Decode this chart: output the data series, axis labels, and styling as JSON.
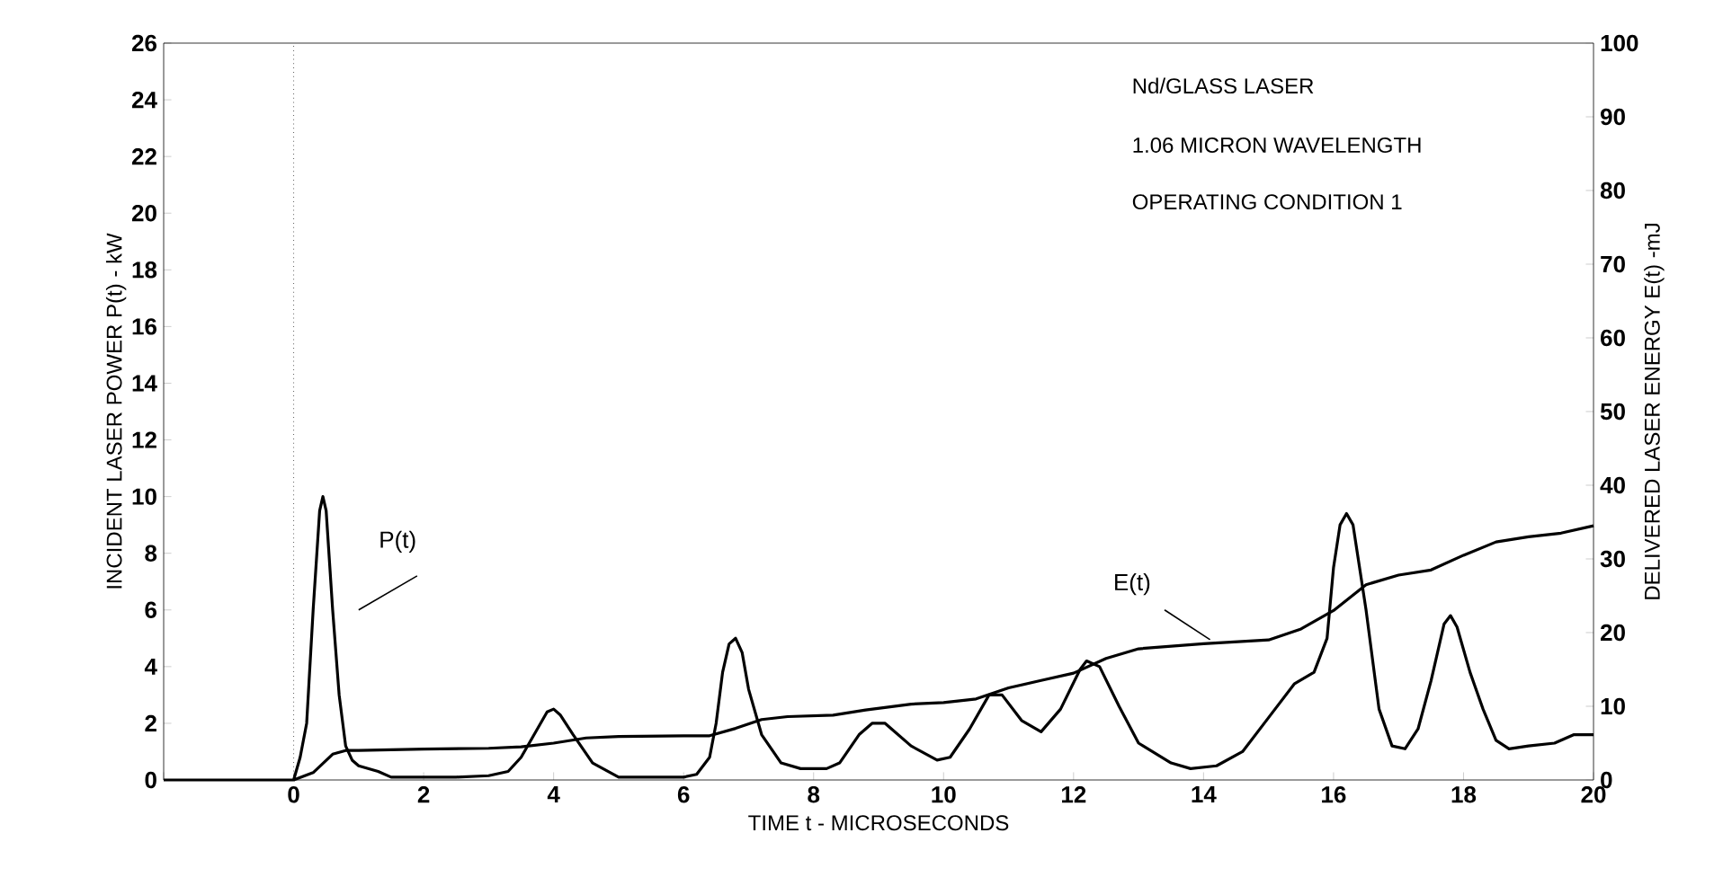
{
  "chart_data": {
    "type": "line",
    "xlabel": "TIME t - MICROSECONDS",
    "ylabel": "INCIDENT LASER POWER P(t) - kW",
    "y2label": "DELIVERED LASER ENERGY E(t) -mJ",
    "annotations": [
      "Nd/GLASS LASER",
      "1.06 MICRON WAVELENGTH",
      "OPERATING CONDITION 1"
    ],
    "xlim": [
      -2,
      20
    ],
    "xticks": [
      {
        "value": -2,
        "label": null
      },
      0,
      2,
      4,
      6,
      8,
      10,
      12,
      14,
      16,
      18,
      20
    ],
    "ylim": [
      0,
      26
    ],
    "yticks": [
      0,
      2,
      4,
      6,
      8,
      10,
      12,
      14,
      16,
      18,
      20,
      22,
      24,
      26
    ],
    "y2lim": [
      0,
      100
    ],
    "y2ticks": [
      0,
      10,
      20,
      30,
      40,
      50,
      60,
      70,
      80,
      90,
      100
    ],
    "grid": false,
    "marker": "none",
    "line_style": "solid",
    "ref_lines": [
      {
        "axis": "x",
        "value": 0,
        "line_style": "dotted",
        "color": "#000000"
      }
    ],
    "series": [
      {
        "name": "P(t)",
        "color": "#000000",
        "x": [
          -2,
          0,
          0.1,
          0.2,
          0.3,
          0.4,
          0.45,
          0.5,
          0.6,
          0.7,
          0.8,
          0.9,
          1.0,
          1.3,
          1.5,
          2,
          2.5,
          3,
          3.3,
          3.5,
          3.7,
          3.9,
          4.0,
          4.1,
          4.3,
          4.6,
          5,
          5.5,
          6,
          6.2,
          6.4,
          6.5,
          6.6,
          6.7,
          6.8,
          6.9,
          7.0,
          7.2,
          7.5,
          7.8,
          8.2,
          8.4,
          8.7,
          8.9,
          9.1,
          9.5,
          9.9,
          10.1,
          10.4,
          10.7,
          10.9,
          11.2,
          11.5,
          11.8,
          12.1,
          12.2,
          12.4,
          12.7,
          13.0,
          13.5,
          13.8,
          14.2,
          14.6,
          15.0,
          15.4,
          15.7,
          15.9,
          16.0,
          16.1,
          16.2,
          16.3,
          16.5,
          16.7,
          16.9,
          17.1,
          17.3,
          17.5,
          17.7,
          17.8,
          17.9,
          18.1,
          18.3,
          18.5,
          18.7,
          19.0,
          19.4,
          19.7,
          20
        ],
        "values": [
          0,
          0,
          0.8,
          2,
          6,
          9.5,
          10,
          9.5,
          6,
          3,
          1.2,
          0.7,
          0.5,
          0.3,
          0.1,
          0.1,
          0.1,
          0.15,
          0.3,
          0.8,
          1.6,
          2.4,
          2.5,
          2.3,
          1.6,
          0.6,
          0.1,
          0.1,
          0.1,
          0.2,
          0.8,
          2,
          3.8,
          4.8,
          5,
          4.5,
          3.2,
          1.6,
          0.6,
          0.4,
          0.4,
          0.6,
          1.6,
          2.0,
          2.0,
          1.2,
          0.7,
          0.8,
          1.8,
          3.0,
          3.0,
          2.1,
          1.7,
          2.5,
          3.9,
          4.2,
          4.0,
          2.6,
          1.3,
          0.6,
          0.4,
          0.5,
          1.0,
          2.2,
          3.4,
          3.8,
          5,
          7.5,
          9,
          9.4,
          9,
          6,
          2.5,
          1.2,
          1.1,
          1.8,
          3.5,
          5.5,
          5.8,
          5.4,
          3.8,
          2.5,
          1.4,
          1.1,
          1.2,
          1.3,
          1.6,
          1.6
        ]
      },
      {
        "name": "E(t)",
        "color": "#000000",
        "axis": "y2",
        "x": [
          0,
          0.3,
          0.6,
          0.8,
          1.0,
          2,
          3,
          3.5,
          4,
          4.5,
          5,
          6,
          6.4,
          6.8,
          7.2,
          7.6,
          8.3,
          8.8,
          9.5,
          10,
          10.5,
          11,
          11.5,
          12,
          12.5,
          13,
          14,
          15,
          15.5,
          16,
          16.5,
          17,
          17.5,
          18,
          18.5,
          19,
          19.5,
          20
        ],
        "values": [
          0,
          1,
          3.5,
          4,
          4,
          4.2,
          4.3,
          4.5,
          5,
          5.7,
          5.9,
          6,
          6,
          7,
          8.2,
          8.6,
          8.8,
          9.5,
          10.3,
          10.5,
          11,
          12.5,
          13.5,
          14.5,
          16.5,
          17.8,
          18.5,
          19,
          20.5,
          23,
          26.5,
          27.8,
          28.5,
          30.5,
          32.3,
          33,
          33.5,
          34.5
        ]
      }
    ]
  }
}
